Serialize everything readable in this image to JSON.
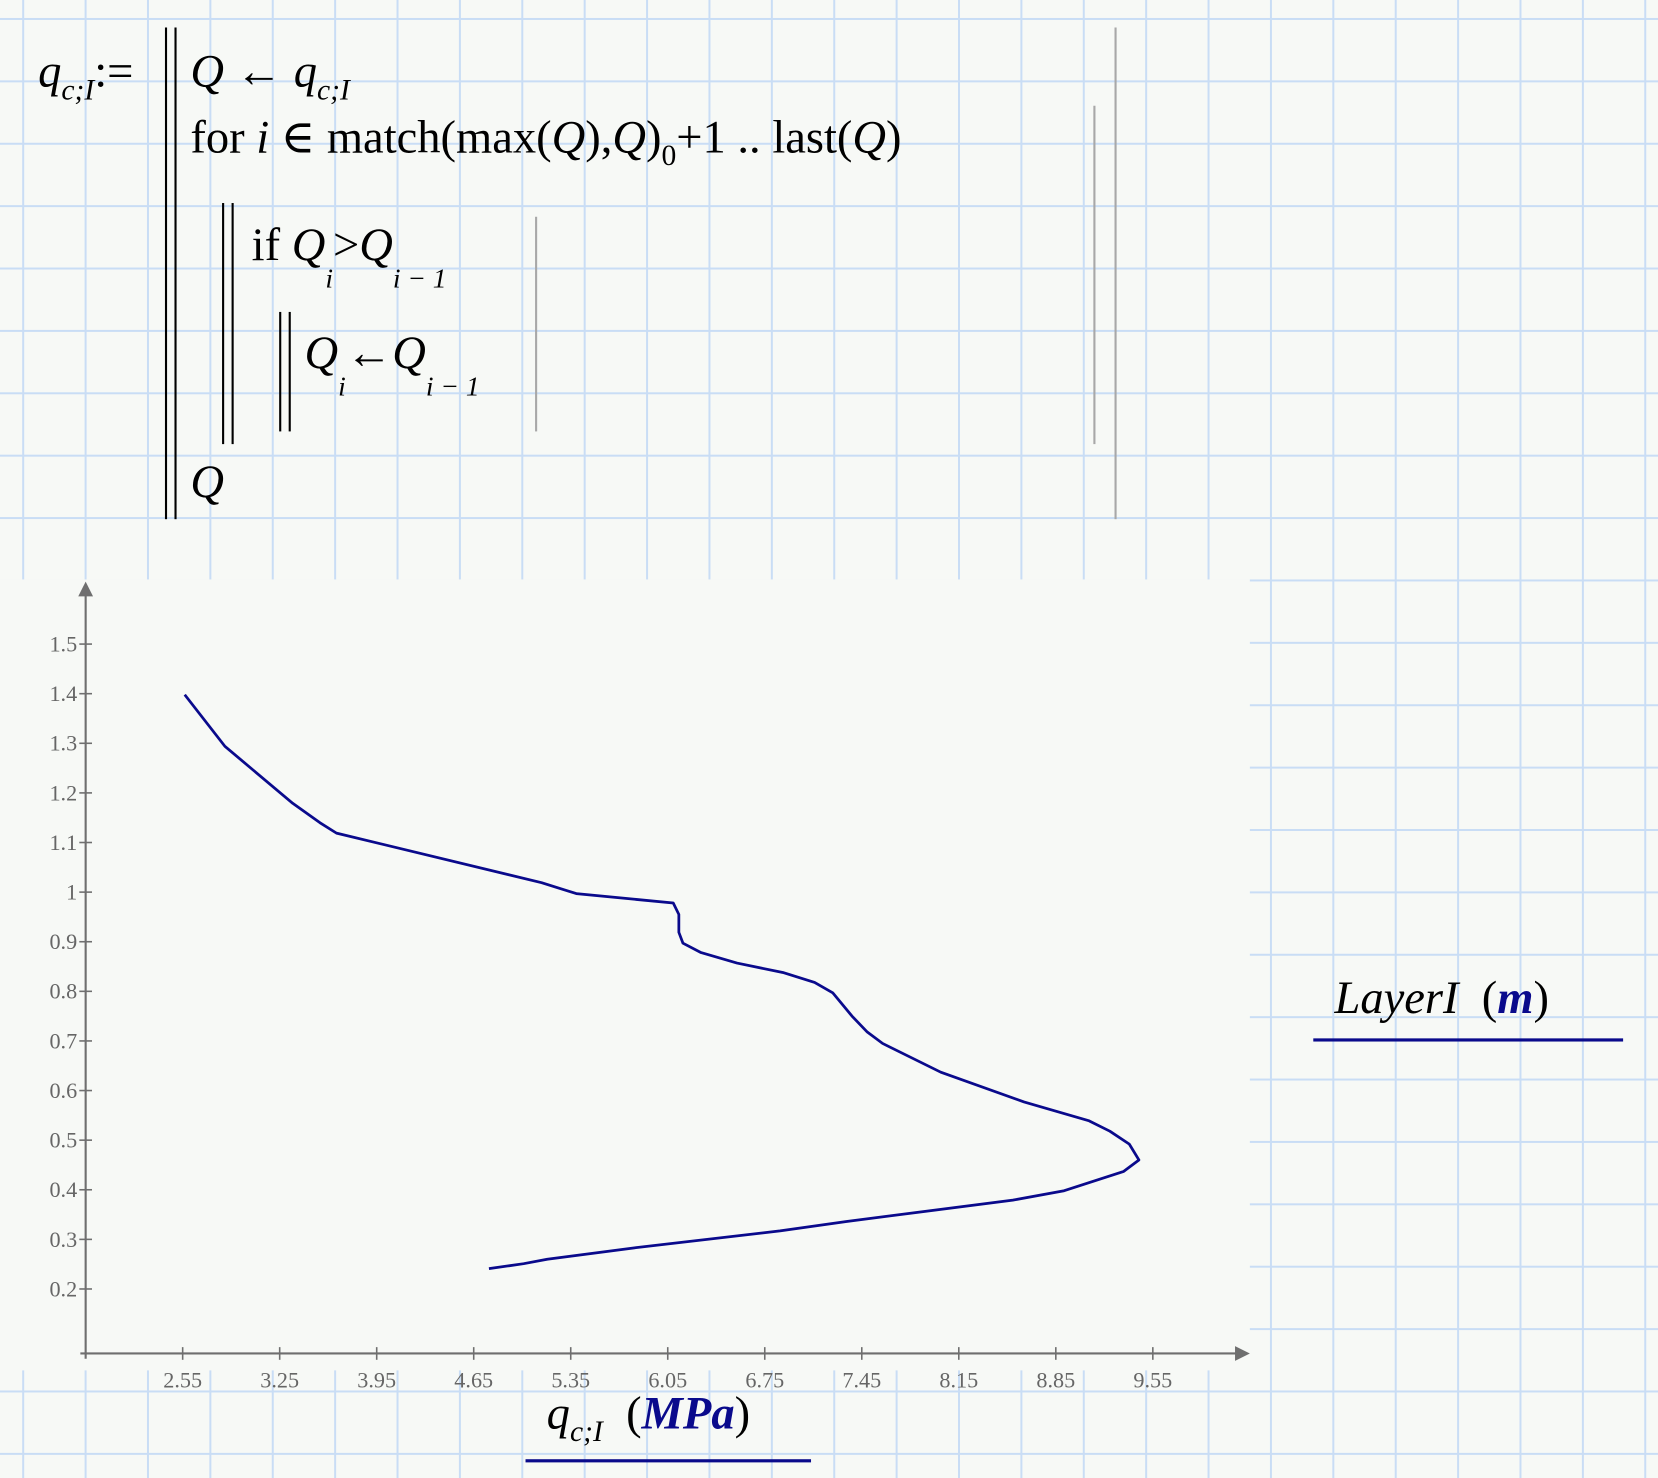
{
  "program": {
    "lhs": {
      "var": "q",
      "sub": "c;I",
      "op": ":="
    },
    "line1": {
      "var": "Q",
      "arrow": "←",
      "rhs": "q",
      "rhs_sub": "c;I"
    },
    "line2": {
      "kw": "for",
      "idx": "i",
      "in": "∈",
      "expr1": "match",
      "expr2": "(max(",
      "q1": "Q",
      "expr3": "),",
      "q2": "Q",
      "expr4": ")",
      "sub0": "0",
      "expr5": "+1 .. last(",
      "q3": "Q",
      "expr6": ")"
    },
    "line3": {
      "kw": "if",
      "a": "Q",
      "a_sub": "i",
      "op": ">",
      "b": "Q",
      "b_sub": "i − 1"
    },
    "line4": {
      "a": "Q",
      "a_sub": "i",
      "arrow": "←",
      "b": "Q",
      "b_sub": "i − 1"
    },
    "line5": {
      "ret": "Q"
    }
  },
  "chart_data": {
    "type": "line",
    "x_ticks": [
      "2.55",
      "3.25",
      "3.95",
      "4.65",
      "5.35",
      "6.05",
      "6.75",
      "7.45",
      "8.15",
      "8.85",
      "9.55"
    ],
    "y_ticks": [
      "0.2",
      "0.3",
      "0.4",
      "0.5",
      "0.6",
      "0.7",
      "0.8",
      "0.9",
      "1",
      "1.1",
      "1.2",
      "1.3",
      "1.4",
      "1.5"
    ],
    "xlim": [
      1.85,
      10.25
    ],
    "ylim": [
      0.07,
      1.626
    ],
    "xlabel": {
      "var": "q",
      "sub": "c;I",
      "unit": "MPa"
    },
    "ylabel": {
      "var": "LayerI",
      "unit": "m"
    },
    "grid": false,
    "series": [
      {
        "color": "#0a0a8c",
        "x": [
          2.565,
          2.855,
          3.344,
          3.54,
          3.66,
          5.14,
          5.39,
          6.09,
          6.13,
          6.13,
          6.16,
          6.29,
          6.55,
          6.88,
          7.11,
          7.24,
          7.38,
          7.49,
          7.6,
          8.02,
          8.62,
          9.09,
          9.24,
          9.38,
          9.45,
          9.34,
          8.91,
          8.54,
          7.95,
          7.34,
          6.86,
          5.81,
          5.18,
          5.01,
          4.76
        ],
        "y": [
          1.398,
          1.294,
          1.179,
          1.14,
          1.119,
          1.019,
          0.997,
          0.978,
          0.955,
          0.919,
          0.897,
          0.878,
          0.857,
          0.838,
          0.818,
          0.797,
          0.75,
          0.718,
          0.695,
          0.637,
          0.577,
          0.539,
          0.518,
          0.492,
          0.46,
          0.437,
          0.398,
          0.379,
          0.358,
          0.336,
          0.317,
          0.283,
          0.26,
          0.251,
          0.241
        ]
      }
    ]
  },
  "colors": {
    "grid": "#c9ddf5",
    "background": "#f7f9f6",
    "series": "#0a0a8c",
    "axis": "#6f6f6f"
  }
}
